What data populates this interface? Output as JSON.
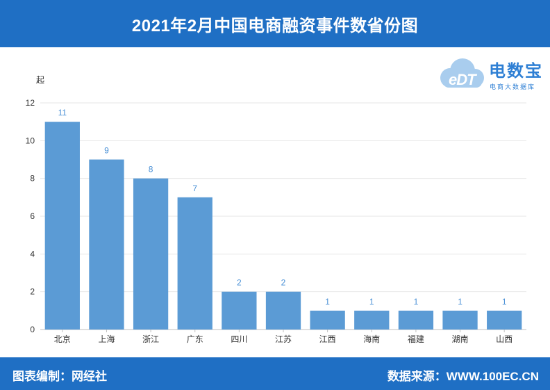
{
  "header": {
    "title": "2021年2月中国电商融资事件数省份图"
  },
  "footer": {
    "left": "图表编制：网经社",
    "right": "数据来源：WWW.100EC.CN"
  },
  "logo": {
    "name": "电数宝",
    "tagline": "电商大数据库",
    "mark": "eDT",
    "colors": {
      "cloud": "#a9cdee",
      "text": "#2e7fd4"
    }
  },
  "chart_data": {
    "type": "bar",
    "title": "2021年2月中国电商融资事件数省份图",
    "unit": "起",
    "categories": [
      "北京",
      "上海",
      "浙江",
      "广东",
      "四川",
      "江苏",
      "江西",
      "海南",
      "福建",
      "湖南",
      "山西"
    ],
    "values": [
      11,
      9,
      8,
      7,
      2,
      2,
      1,
      1,
      1,
      1,
      1
    ],
    "ylim": [
      0,
      12
    ],
    "yticks": [
      0,
      2,
      4,
      6,
      8,
      10,
      12
    ],
    "grid": true,
    "legend": "none",
    "bar_color": "#5b9bd5",
    "label_color": "#4a90d6"
  }
}
